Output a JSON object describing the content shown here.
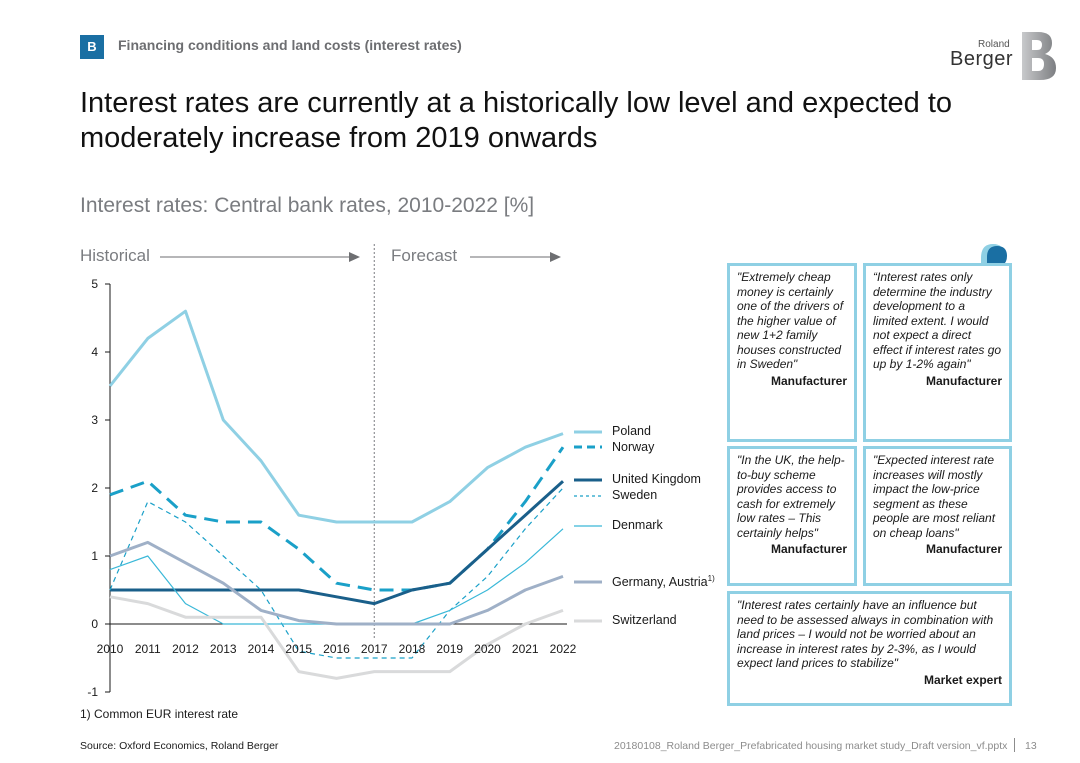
{
  "header": {
    "section_badge": "B",
    "section_label": "Financing conditions and land costs (interest rates)",
    "logo_small": "Roland",
    "logo_big": "Berger"
  },
  "title": "Interest rates are currently at a historically low level and expected to moderately increase from 2019 onwards",
  "chart_data": {
    "type": "line",
    "title": "Interest rates: Central bank rates, 2010-2022 [%]",
    "xlabel": "",
    "ylabel": "",
    "x": [
      "2010",
      "2011",
      "2012",
      "2013",
      "2014",
      "2015",
      "2016",
      "2017",
      "2018",
      "2019",
      "2020",
      "2021",
      "2022"
    ],
    "ylim": [
      -1,
      5
    ],
    "yticks": [
      "-1",
      "0",
      "1",
      "2",
      "3",
      "4",
      "5"
    ],
    "periods": {
      "historical": "Historical",
      "forecast": "Forecast",
      "split_year": "2017"
    },
    "series": [
      {
        "name": "Poland",
        "color": "#8fd0e4",
        "style": "solid-thick",
        "values": [
          3.5,
          4.2,
          4.6,
          3.0,
          2.4,
          1.6,
          1.5,
          1.5,
          1.5,
          1.8,
          2.3,
          2.6,
          2.8
        ]
      },
      {
        "name": "Norway",
        "color": "#1aa0c8",
        "style": "dashed-thick",
        "values": [
          1.9,
          2.1,
          1.6,
          1.5,
          1.5,
          1.1,
          0.6,
          0.5,
          0.5,
          0.6,
          1.1,
          1.8,
          2.6
        ]
      },
      {
        "name": "United Kingdom",
        "color": "#1a5f8a",
        "style": "solid-thick",
        "values": [
          0.5,
          0.5,
          0.5,
          0.5,
          0.5,
          0.5,
          0.4,
          0.3,
          0.5,
          0.6,
          1.1,
          1.6,
          2.1
        ]
      },
      {
        "name": "Sweden",
        "color": "#1aa0c8",
        "style": "dashed-thin",
        "values": [
          0.5,
          1.8,
          1.5,
          1.0,
          0.5,
          -0.4,
          -0.5,
          -0.5,
          -0.5,
          0.2,
          0.7,
          1.4,
          2.0
        ]
      },
      {
        "name": "Denmark",
        "color": "#3ab8d8",
        "style": "solid-thin",
        "values": [
          0.8,
          1.0,
          0.3,
          0.0,
          0.0,
          0.0,
          0.0,
          0.0,
          0.0,
          0.2,
          0.5,
          0.9,
          1.4
        ]
      },
      {
        "name": "Germany, Austria",
        "sup": "1)",
        "color": "#9fb0c7",
        "style": "solid-thick",
        "values": [
          1.0,
          1.2,
          0.9,
          0.6,
          0.2,
          0.05,
          0.0,
          0.0,
          0.0,
          0.0,
          0.2,
          0.5,
          0.7
        ]
      },
      {
        "name": "Switzerland",
        "color": "#d9dadb",
        "style": "solid-thick",
        "values": [
          0.4,
          0.3,
          0.1,
          0.1,
          0.1,
          -0.7,
          -0.8,
          -0.7,
          -0.7,
          -0.7,
          -0.3,
          0.0,
          0.2
        ]
      }
    ]
  },
  "quotes": [
    {
      "text": "\"Extremely cheap money is certainly one of the drivers of the higher value of new 1+2 family houses constructed in Sweden\"",
      "source": "Manufacturer"
    },
    {
      "text": "“Interest rates only determine the industry development to a limited extent. I would not expect a direct effect if interest rates go up by 1-2% again\"",
      "source": "Manufacturer"
    },
    {
      "text": "\"In the UK, the help-to-buy scheme provides access to cash for extremely low rates – This certainly helps\"",
      "source": "Manufacturer"
    },
    {
      "text": "\"Expected interest rate increases will mostly impact the low-price segment as these people are most reliant on cheap loans\"",
      "source": "Manufacturer"
    },
    {
      "text": "\"Interest rates certainly have an influence but need to be assessed always in combination with land prices – I would not be worried about an increase in interest rates by 2-3%, as I would expect land prices to stabilize\"",
      "source": "Market expert"
    }
  ],
  "footer": {
    "footnote": "1) Common EUR interest rate",
    "source": "Source: Oxford Economics, Roland Berger",
    "filename": "20180108_Roland Berger_Prefabricated housing market study_Draft version_vf.pptx",
    "page": "13"
  }
}
